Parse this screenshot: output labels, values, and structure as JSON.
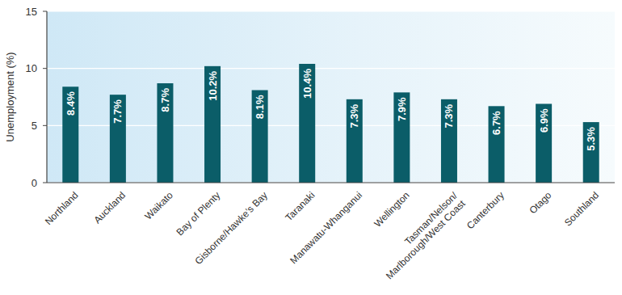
{
  "chart_data": {
    "type": "bar",
    "y_label": "Unemployment (%)",
    "categories": [
      "Northland",
      "Auckland",
      "Waikato",
      "Bay of Plenty",
      "Gisborne/Hawke’s Bay",
      "Taranaki",
      "Manawatu-Whanganui",
      "Wellington",
      "Tasman/Nelson/Marlborough/West Coast",
      "Canterbury",
      "Otago",
      "Southland"
    ],
    "values": [
      8.4,
      7.7,
      8.7,
      10.2,
      8.1,
      10.4,
      7.3,
      7.9,
      7.3,
      6.7,
      6.9,
      5.3
    ],
    "value_labels": [
      "8.4%",
      "7.7%",
      "8.7%",
      "10.2%",
      "8.1%",
      "10.4%",
      "7.3%",
      "7.9%",
      "7.3%",
      "6.7%",
      "6.9%",
      "5.3%"
    ],
    "color": "#0b5d68",
    "ylim": [
      0,
      15
    ],
    "yticks": [
      0,
      5,
      10,
      15
    ],
    "grid": true,
    "data_labels": true
  }
}
